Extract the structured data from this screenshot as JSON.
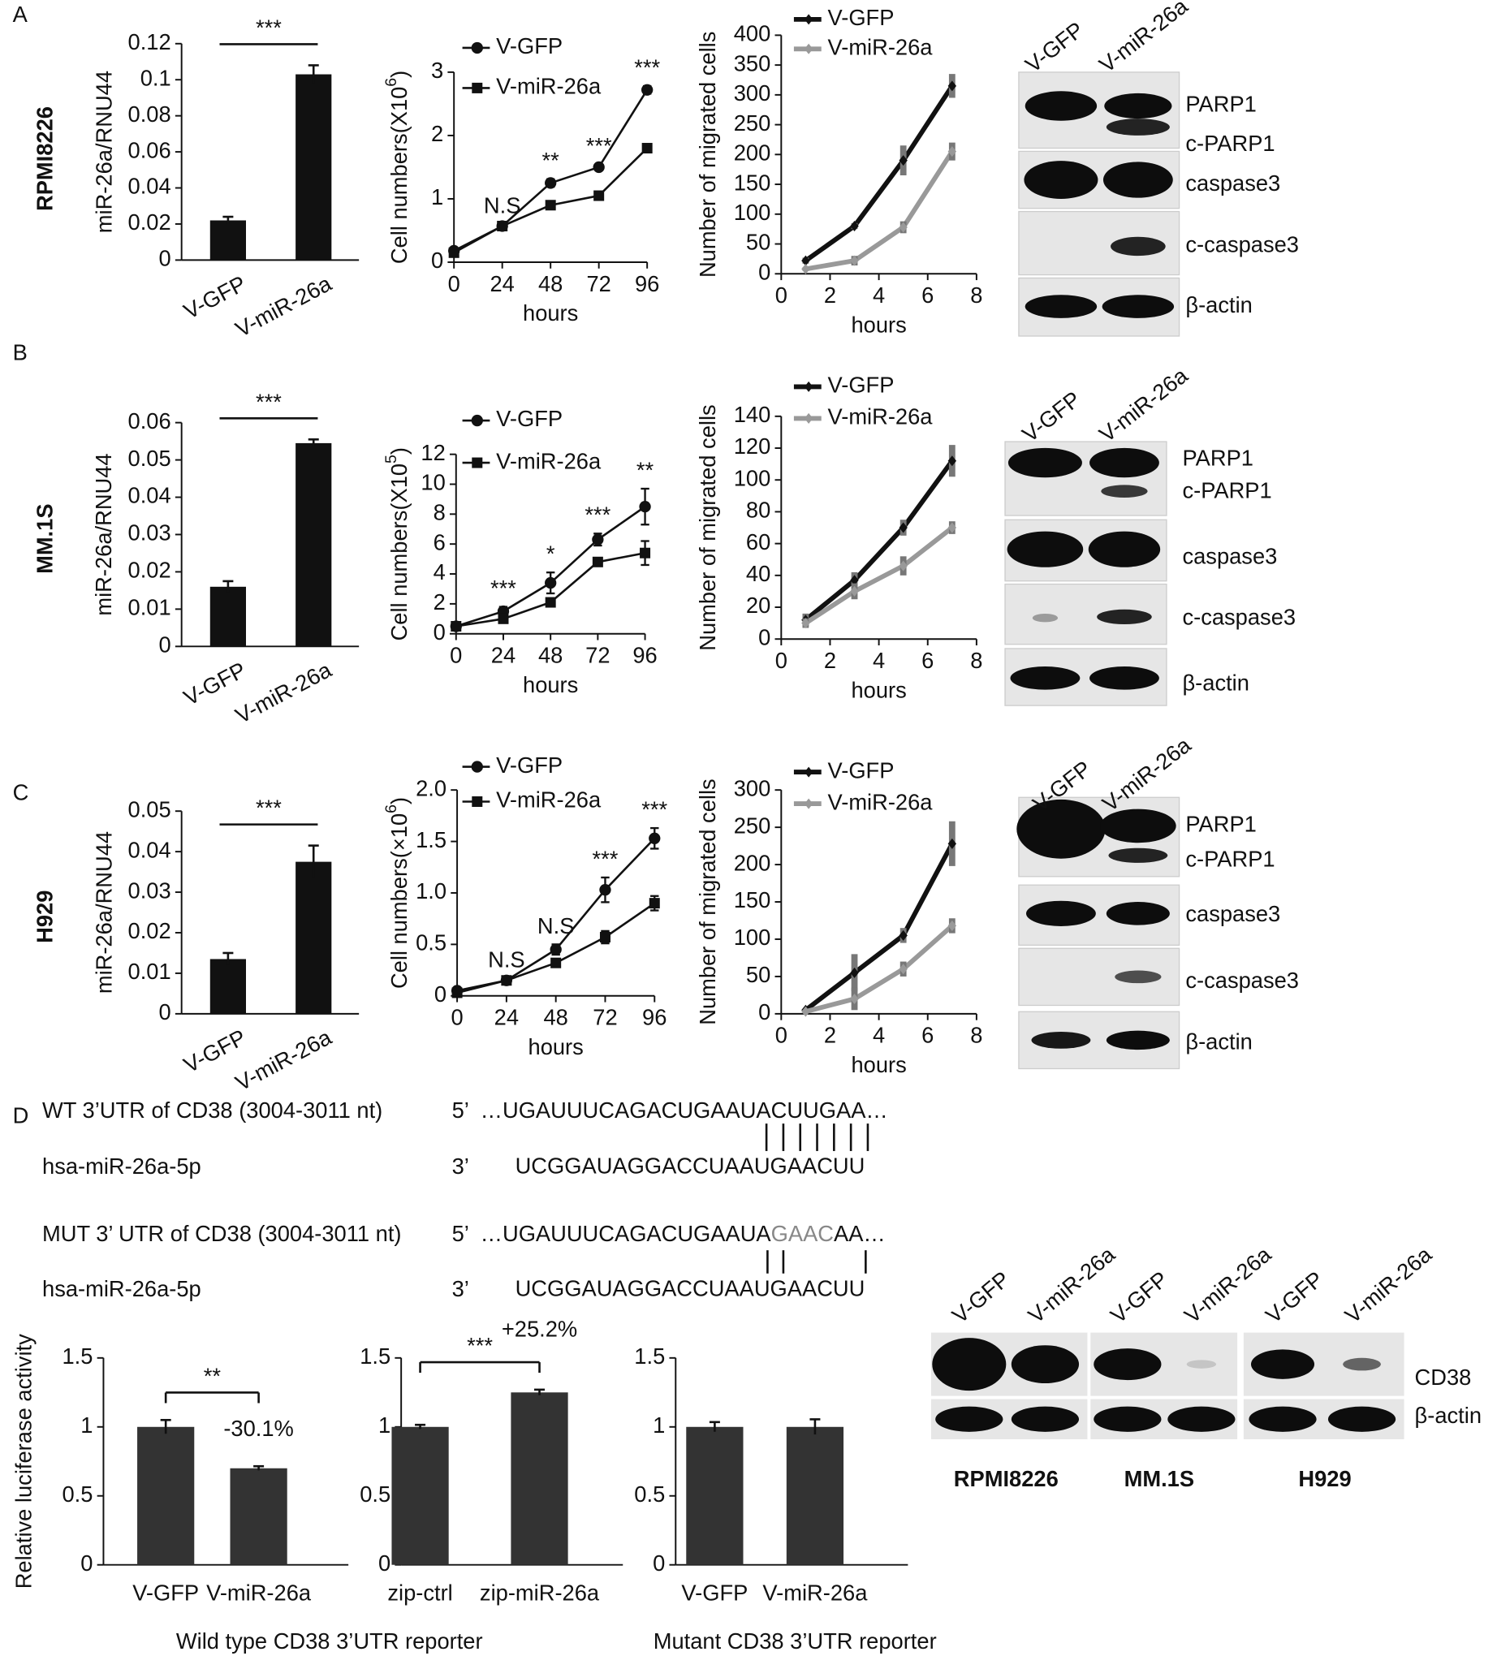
{
  "panel_labels": [
    "A",
    "B",
    "C",
    "D"
  ],
  "row_labels": [
    "RPMI8226",
    "MM.1S",
    "H929"
  ],
  "chart_data": [
    {
      "type": "bar",
      "ylabel": "miR-26a/RNU44",
      "categories": [
        "V-GFP",
        "V-miR-26a"
      ],
      "values": [
        0.022,
        0.103
      ],
      "errors": [
        0.002,
        0.005
      ],
      "color": "#111111",
      "ylim": [
        0,
        0.12
      ],
      "yticks": [
        0,
        0.02,
        0.04,
        0.06,
        0.08,
        0.1,
        0.12
      ],
      "significance": "***"
    },
    {
      "type": "line",
      "ylabel": [
        "Cell numbers(X10",
        "6",
        ")"
      ],
      "xlabel": "hours",
      "x": [
        0,
        24,
        48,
        72,
        96
      ],
      "xlim": [
        0,
        96
      ],
      "xticks": [
        0,
        24,
        48,
        72,
        96
      ],
      "ylim": [
        0,
        3
      ],
      "yticks": [
        0,
        1,
        2,
        3
      ],
      "series": [
        {
          "name": "V-GFP",
          "color": "#111111",
          "marker": "circle",
          "values": [
            0.18,
            0.57,
            1.25,
            1.5,
            2.72
          ],
          "errors": [
            0.02,
            0.03,
            0.06,
            0.04,
            0.06
          ]
        },
        {
          "name": "V-miR-26a",
          "color": "#111111",
          "marker": "square",
          "values": [
            0.15,
            0.57,
            0.9,
            1.05,
            1.8
          ],
          "errors": [
            0.02,
            0.03,
            0.06,
            0.04,
            0.05
          ]
        }
      ],
      "annotations": [
        null,
        "N.S",
        "**",
        "***",
        "***"
      ]
    },
    {
      "type": "line",
      "ylabel": "Number of migrated cells",
      "xlabel": "hours",
      "x": [
        1,
        3,
        5,
        7
      ],
      "xlim": [
        0,
        8
      ],
      "xticks": [
        0,
        2,
        4,
        6,
        8
      ],
      "ylim": [
        0,
        400
      ],
      "yticks": [
        0,
        50,
        100,
        150,
        200,
        250,
        300,
        350,
        400
      ],
      "series": [
        {
          "name": "V-GFP",
          "color": "#111111",
          "marker": "diamond",
          "values": [
            22,
            80,
            190,
            315
          ],
          "errors": [
            5,
            5,
            25,
            20
          ]
        },
        {
          "name": "V-miR-26a",
          "color": "#999999",
          "marker": "diamond",
          "values": [
            8,
            22,
            78,
            205
          ],
          "errors": [
            3,
            8,
            10,
            15
          ]
        }
      ]
    },
    {
      "type": "bar",
      "ylabel": "miR-26a/RNU44",
      "categories": [
        "V-GFP",
        "V-miR-26a"
      ],
      "values": [
        0.016,
        0.0545
      ],
      "errors": [
        0.0015,
        0.001
      ],
      "color": "#111111",
      "ylim": [
        0,
        0.06
      ],
      "yticks": [
        0,
        0.01,
        0.02,
        0.03,
        0.04,
        0.05,
        0.06
      ],
      "significance": "***"
    },
    {
      "type": "line",
      "ylabel": [
        "Cell numbers(X10",
        "5",
        ")"
      ],
      "xlabel": "hours",
      "x": [
        0,
        24,
        48,
        72,
        96
      ],
      "xlim": [
        0,
        96
      ],
      "xticks": [
        0,
        24,
        48,
        72,
        96
      ],
      "ylim": [
        0,
        12
      ],
      "yticks": [
        0,
        2,
        4,
        6,
        8,
        10,
        12
      ],
      "series": [
        {
          "name": "V-GFP",
          "color": "#111111",
          "marker": "circle",
          "values": [
            0.5,
            1.5,
            3.4,
            6.3,
            8.5
          ],
          "errors": [
            0.1,
            0.3,
            0.7,
            0.4,
            1.2
          ]
        },
        {
          "name": "V-miR-26a",
          "color": "#111111",
          "marker": "square",
          "values": [
            0.5,
            1.0,
            2.1,
            4.8,
            5.4
          ],
          "errors": [
            0.1,
            0.2,
            0.2,
            0.2,
            0.8
          ]
        }
      ],
      "annotations": [
        null,
        "***",
        "*",
        "***",
        "**"
      ]
    },
    {
      "type": "line",
      "ylabel": "Number of migrated cells",
      "xlabel": "hours",
      "x": [
        1,
        3,
        5,
        7
      ],
      "xlim": [
        0,
        8
      ],
      "xticks": [
        0,
        2,
        4,
        6,
        8
      ],
      "ylim": [
        0,
        140
      ],
      "yticks": [
        0,
        20,
        40,
        60,
        80,
        100,
        120,
        140
      ],
      "series": [
        {
          "name": "V-GFP",
          "color": "#111111",
          "marker": "diamond",
          "values": [
            12,
            37,
            70,
            112
          ],
          "errors": [
            4,
            5,
            5,
            10
          ]
        },
        {
          "name": "V-miR-26a",
          "color": "#999999",
          "marker": "diamond",
          "values": [
            10,
            30,
            46,
            70
          ],
          "errors": [
            3,
            5,
            6,
            4
          ]
        }
      ]
    },
    {
      "type": "bar",
      "ylabel": "miR-26a/RNU44",
      "categories": [
        "V-GFP",
        "V-miR-26a"
      ],
      "values": [
        0.0135,
        0.0375
      ],
      "errors": [
        0.0015,
        0.004
      ],
      "color": "#111111",
      "ylim": [
        0,
        0.05
      ],
      "yticks": [
        0,
        0.01,
        0.02,
        0.03,
        0.04,
        0.05
      ],
      "significance": "***"
    },
    {
      "type": "line",
      "ylabel": [
        "Cell numbers(×10",
        "6",
        ")"
      ],
      "xlabel": "hours",
      "x": [
        0,
        24,
        48,
        72,
        96
      ],
      "xlim": [
        0,
        96
      ],
      "xticks": [
        0,
        24,
        48,
        72,
        96
      ],
      "ylim": [
        0,
        2
      ],
      "yticks": [
        0,
        0.5,
        {
          "value": 1,
          "label": "1.0"
        },
        1.5,
        {
          "value": 2,
          "label": "2.0"
        }
      ],
      "series": [
        {
          "name": "V-GFP",
          "color": "#111111",
          "marker": "circle",
          "values": [
            0.05,
            0.15,
            0.45,
            1.03,
            1.53
          ],
          "errors": [
            0.02,
            0.02,
            0.05,
            0.12,
            0.1
          ]
        },
        {
          "name": "V-miR-26a",
          "color": "#111111",
          "marker": "square",
          "values": [
            0.03,
            0.15,
            0.32,
            0.57,
            0.9
          ],
          "errors": [
            0.02,
            0.02,
            0.03,
            0.06,
            0.07
          ]
        }
      ],
      "annotations": [
        null,
        "N.S",
        "N.S",
        "***",
        "***"
      ]
    },
    {
      "type": "line",
      "ylabel": "Number of migrated cells",
      "xlabel": "hours",
      "x": [
        1,
        3,
        5,
        7
      ],
      "xlim": [
        0,
        8
      ],
      "xticks": [
        0,
        2,
        4,
        6,
        8
      ],
      "ylim": [
        0,
        300
      ],
      "yticks": [
        0,
        50,
        100,
        150,
        200,
        250,
        300
      ],
      "series": [
        {
          "name": "V-GFP",
          "color": "#111111",
          "marker": "diamond",
          "values": [
            5,
            55,
            105,
            228
          ],
          "errors": [
            2,
            25,
            10,
            30
          ]
        },
        {
          "name": "V-miR-26a",
          "color": "#999999",
          "marker": "diamond",
          "values": [
            3,
            20,
            60,
            118
          ],
          "errors": [
            2,
            15,
            10,
            10
          ]
        }
      ]
    },
    {
      "type": "bar",
      "ylabel": "Relative luciferase activity",
      "categories": [
        "V-GFP",
        "V-miR-26a"
      ],
      "values": [
        1,
        0.7
      ],
      "errors": [
        0.05,
        0.015
      ],
      "color": "#333333",
      "ylim": [
        0,
        1.5
      ],
      "yticks": [
        0,
        0.5,
        1,
        1.5
      ],
      "significance": "**",
      "change_labels": [
        null,
        "-30.1%"
      ]
    },
    {
      "type": "bar",
      "categories": [
        "zip-ctrl",
        "zip-miR-26a"
      ],
      "values": [
        1,
        1.25
      ],
      "errors": [
        0.015,
        0.02
      ],
      "color": "#333333",
      "ylim": [
        0,
        1.5
      ],
      "yticks": [
        0,
        0.5,
        1,
        1.5
      ],
      "significance": "***",
      "change_labels": [
        null,
        "+25.2%"
      ]
    },
    {
      "type": "bar",
      "categories": [
        "V-GFP",
        "V-miR-26a"
      ],
      "values": [
        1,
        1
      ],
      "errors": [
        0.035,
        0.055
      ],
      "color": "#333333",
      "ylim": [
        0,
        1.5
      ],
      "yticks": [
        0,
        0.5,
        1,
        1.5
      ]
    }
  ],
  "reporter_labels": [
    "Wild type CD38 3’UTR reporter",
    "Mutant CD38 3’UTR reporter"
  ],
  "blots": [
    {
      "lanes": [
        "V-GFP",
        "V-miR-26a"
      ],
      "proteins": [
        "PARP1",
        "c-PARP1",
        "caspase3",
        "c-caspase3",
        "β-actin"
      ]
    },
    {
      "lanes": [
        "V-GFP",
        "V-miR-26a"
      ],
      "proteins": [
        "PARP1",
        "c-PARP1",
        "caspase3",
        "c-caspase3",
        "β-actin"
      ]
    },
    {
      "lanes": [
        "V-GFP",
        "V-miR-26a"
      ],
      "proteins": [
        "PARP1",
        "c-PARP1",
        "caspase3",
        "c-caspase3",
        "β-actin"
      ]
    }
  ],
  "sequences": [
    {
      "name": "WT 3’UTR of CD38 (3004-3011 nt)",
      "end": "5’",
      "seq": [
        "…UGAUUUCAGACUGAAUACUUGAA…"
      ]
    },
    {
      "name": "hsa-miR-26a-5p",
      "end": "3’",
      "seq": [
        "UCGGAUAGGACCUAAUGAACUU"
      ]
    },
    {
      "name": "MUT 3’ UTR of CD38 (3004-3011 nt)",
      "end": "5’",
      "seq": [
        "…UGAUUUCAGACUGAAUA",
        "GAAC",
        "AA…"
      ]
    },
    {
      "name": "hsa-miR-26a-5p",
      "end": "3’",
      "seq": [
        "UCGGAUAGGACCUAAUGAACUU"
      ]
    }
  ],
  "cd38_blot": {
    "lanes": [
      "V-GFP",
      "V-miR-26a",
      "V-GFP",
      "V-miR-26a",
      "V-GFP",
      "V-miR-26a"
    ],
    "cell_lines": [
      "RPMI8226",
      "MM.1S",
      "H929"
    ],
    "proteins": [
      "CD38",
      "β-actin"
    ]
  }
}
